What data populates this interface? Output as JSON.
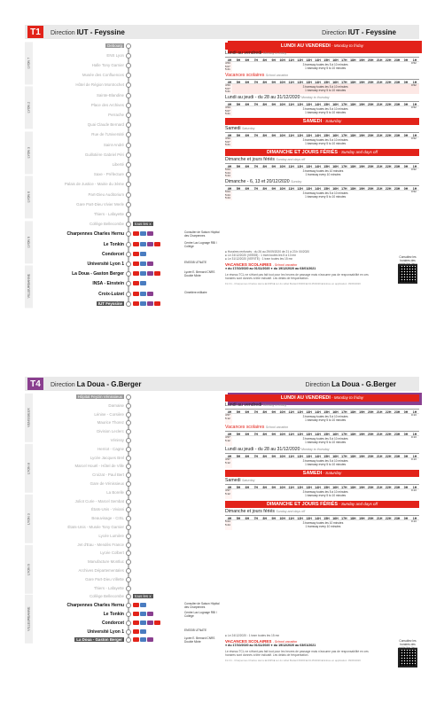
{
  "sheet1": {
    "line_badge": "T1",
    "direction_prefix": "Direction",
    "direction": "IUT - Feyssine",
    "zones": [
      "LYON 7",
      "LYON 2",
      "LYON 3",
      "LYON 6",
      "LYON 9",
      "VILLEURBANNE"
    ],
    "stops": [
      {
        "name": "Debourg",
        "style": "first"
      },
      {
        "name": "ENS Lyon",
        "style": ""
      },
      {
        "name": "Halle Tony Garnier",
        "style": ""
      },
      {
        "name": "Musée des Confluences",
        "style": ""
      },
      {
        "name": "Hôtel de Région Montrochet",
        "style": ""
      },
      {
        "name": "Sainte-Blandine",
        "style": ""
      },
      {
        "name": "Place des Archives",
        "style": ""
      },
      {
        "name": "Perrache",
        "style": ""
      },
      {
        "name": "Quai Claude Bernard",
        "style": ""
      },
      {
        "name": "Rue de l'Université",
        "style": ""
      },
      {
        "name": "Saint-André",
        "style": ""
      },
      {
        "name": "Guillotière Gabriel Péri",
        "style": ""
      },
      {
        "name": "Liberté",
        "style": ""
      },
      {
        "name": "Saxe - Préfecture",
        "style": ""
      },
      {
        "name": "Palais de Justice - Mairie du 3ème",
        "style": ""
      },
      {
        "name": "Part-Dieu Auditorium",
        "style": ""
      },
      {
        "name": "Gare Part-Dieu Vivier Merle",
        "style": ""
      },
      {
        "name": "Thiers - Lafayette",
        "style": ""
      },
      {
        "name": "Collège Bellecombe",
        "style": ""
      },
      {
        "name": "Charpennes Charles Hernu",
        "style": "bold"
      },
      {
        "name": "Le Tonkin",
        "style": "bold"
      },
      {
        "name": "Condorcet",
        "style": "bold"
      },
      {
        "name": "Université Lyon 1",
        "style": "bold"
      },
      {
        "name": "La Doua - Gaston Berger",
        "style": "bold"
      },
      {
        "name": "INSA - Einstein",
        "style": "bold"
      },
      {
        "name": "Croix-Luizet",
        "style": "bold"
      },
      {
        "name": "IUT Feyssine",
        "style": "term"
      }
    ],
    "conn_info": [
      {
        "row": 19,
        "text": "Consulter de Saison Hôpital des Charpennes"
      },
      {
        "row": 20,
        "text": "Centre Lac Lugnage RBI / Collège"
      },
      {
        "row": 22,
        "text": "ENSSIB UTNATE"
      },
      {
        "row": 23,
        "text": "Lycée E. Bernard CNRS Double Mixte"
      },
      {
        "row": 25,
        "text": "Cimetière militaire"
      }
    ],
    "tous_les": "tous les x",
    "sections": [
      {
        "type": "banner",
        "title": "LUNDI AU VENDREDI",
        "subtitle": "Monday to friday"
      },
      {
        "type": "period",
        "title": "Lundi au vendredi",
        "note": "Monday to friday",
        "school": false,
        "freq": [
          "3 tramway toutes les 5 à 10 minutes",
          "1 tramway every 5 to 10 minutes"
        ],
        "first": [
          "4:53",
          "5:07",
          "5:21"
        ],
        "last": "0:52",
        "pink": false
      },
      {
        "type": "period",
        "title": "Vacances scolaires",
        "note": "School vacation",
        "school": true,
        "freq": [
          "3 tramway toutes les 5 à 10 minutes",
          "1 tramway every 5 to 10 minutes"
        ],
        "first": [
          "4:53",
          "5:07",
          "5:21"
        ],
        "last": "0:52",
        "pink": true
      },
      {
        "type": "period",
        "title": "Lundi au jeudi - du 28 au 31/12/2020",
        "note": "Monday to thursday",
        "school": false,
        "freq": [
          "3 tramway toutes les 5 à 10 minutes",
          "1 tramway every 5 to 10 minutes"
        ],
        "first": [
          "4:53",
          "5:07",
          "5:21"
        ],
        "last": "0:52",
        "pink": false
      },
      {
        "type": "banner",
        "title": "SAMEDI",
        "subtitle": "Saturday"
      },
      {
        "type": "period",
        "title": "Samedi",
        "note": "Saturday",
        "school": false,
        "freq": [
          "3 tramway toutes les 5 à 10 minutes",
          "1 tramway every 5 to 10 minutes"
        ],
        "first": [
          "4:53",
          "5:07",
          "5:21"
        ],
        "last": "0:52",
        "pink": false
      },
      {
        "type": "banner",
        "title": "DIMANCHE ET JOURS FÉRIÉS",
        "subtitle": "Sunday and days off"
      },
      {
        "type": "period",
        "title": "Dimanche et jours fériés",
        "note": "Sunday and days off",
        "school": false,
        "freq": [
          "3 tramway toutes les 10 minutes",
          "1 tramway every 10 minutes"
        ],
        "first": [
          "5:04",
          "5:24",
          "5:44"
        ],
        "last": "0:52",
        "pink": false
      },
      {
        "type": "period",
        "title": "Dimanche - 6, 13 et 20/12/2020",
        "note": "Sunday",
        "school": false,
        "freq": [
          "3 tramway toutes les 5 à 10 minutes",
          "1 tramway every 5 to 10 minutes"
        ],
        "first": [
          "5:04",
          "5:24",
          "5:44"
        ],
        "last": "0:52",
        "pink": false
      }
    ],
    "hours": [
      "4H",
      "5H",
      "6H",
      "7H",
      "8H",
      "9H",
      "10H",
      "11H",
      "12H",
      "13H",
      "14H",
      "15H",
      "16H",
      "17H",
      "18H",
      "19H",
      "20H",
      "21H",
      "22H",
      "23H",
      "0H",
      "1H"
    ],
    "notes": [
      "● Horaires renforcés : du 26 au 29/09/2020 de 21 à 23 h 00/2020",
      "● Le 24/12/2020 (VEB93) : 1 tram toutes les 5 à 10 mn",
      "● Le 31/12/2020 (VERITE) : 1 tram toutes les 15 mn"
    ],
    "vacances_title": "VACANCES SCOLAIRES",
    "vacances_sub": "School vacation",
    "vacances_1": "du 17/10/2020 au 01/11/2020",
    "vacances_2": "du 19/12/2020 au 03/01/2021",
    "disclaimer": "Le réseau TCL ne s'étant pas fait tout pour les heures de passage mais n'assume pas de responsabilité en ces horaires sont donnés à titre indicatif. Les délais de fréquentation.",
    "qr_label": "Consultez les horaires des arrêts/des lieux",
    "legal": "Fin 01 - Charpennes Charles Hernu ■ 2035 ■ sur du Hôtel Bodard 69000 ■ 04-05/2020 ■ Entrée en application: 09/09/2020"
  },
  "sheet2": {
    "line_badge": "T4",
    "direction_prefix": "Direction",
    "direction": "La Doua - G.Berger",
    "zones": [
      "VENISSIEUX",
      "LYON 8",
      "LYON 3",
      "LYON 6",
      "VILLEURBANNE"
    ],
    "stops": [
      {
        "name": "Hôpital Feyzin Vénissieux",
        "style": "first"
      },
      {
        "name": "Darnaise",
        "style": ""
      },
      {
        "name": "Lénine - Corsière",
        "style": ""
      },
      {
        "name": "Maurice Thorez",
        "style": ""
      },
      {
        "name": "Division Leclerc",
        "style": ""
      },
      {
        "name": "Vénissy",
        "style": ""
      },
      {
        "name": "Herriot - Cagne",
        "style": ""
      },
      {
        "name": "Lycée Jacques Brel",
        "style": ""
      },
      {
        "name": "Marcel Houël - Hôtel de Ville",
        "style": ""
      },
      {
        "name": "Croizat - Paul Bert",
        "style": ""
      },
      {
        "name": "Gare de Vénissieux",
        "style": ""
      },
      {
        "name": "La Borelle",
        "style": ""
      },
      {
        "name": "Joliot Curie - Marcel Sembat",
        "style": ""
      },
      {
        "name": "États-Unis - Viviani",
        "style": ""
      },
      {
        "name": "Beauvisage - CISL",
        "style": ""
      },
      {
        "name": "États-Unis - Musée Tony Garnier",
        "style": ""
      },
      {
        "name": "Lycée Lumière",
        "style": ""
      },
      {
        "name": "Jet d'Eau - Mendès France",
        "style": ""
      },
      {
        "name": "Lycée Colbert",
        "style": ""
      },
      {
        "name": "Manufacture Montluc",
        "style": ""
      },
      {
        "name": "Archives Départementales",
        "style": ""
      },
      {
        "name": "Gare Part-Dieu Villette",
        "style": ""
      },
      {
        "name": "Thiers - Lafayette",
        "style": ""
      },
      {
        "name": "Collège Bellecombe",
        "style": ""
      },
      {
        "name": "Charpennes Charles Hernu",
        "style": "bold"
      },
      {
        "name": "Le Tonkin",
        "style": "bold"
      },
      {
        "name": "Condorcet",
        "style": "bold"
      },
      {
        "name": "Université Lyon 1",
        "style": "bold"
      },
      {
        "name": "La Doua - Gaston Berger",
        "style": "term"
      }
    ],
    "conn_info": [
      {
        "row": 24,
        "text": "Consulter de Saison Hôpital des Charpennes"
      },
      {
        "row": 25,
        "text": "Centre Lac Lugnage RBI / Collège"
      },
      {
        "row": 27,
        "text": "ENSSIB UTNATE"
      },
      {
        "row": 28,
        "text": "Lycée E. Bernard CNRS Double Mixte"
      }
    ],
    "tous_les": "tous les x",
    "sections": [
      {
        "type": "banner",
        "title": "LUNDI AU VENDREDI",
        "subtitle": "Monday to friday"
      },
      {
        "type": "period",
        "title": "Lundi au vendredi",
        "note": "Monday to friday",
        "school": false,
        "freq": [
          "3 tramway toutes les 5 à 10 minutes",
          "1 tramway every 5 to 10 minutes"
        ],
        "first": [
          "4:57",
          "5:12"
        ],
        "last": "0:13",
        "pink": false
      },
      {
        "type": "period",
        "title": "Vacances scolaires",
        "note": "School vacation",
        "school": true,
        "freq": [
          "3 tramway toutes les 5 à 10 minutes",
          "1 tramway every 5 to 10 minutes"
        ],
        "first": [
          "4:57",
          "5:12"
        ],
        "last": "0:13",
        "pink": false
      },
      {
        "type": "period",
        "title": "Lundi au jeudi - du 28 au 31/12/2020",
        "note": "Monday to thursday",
        "school": false,
        "freq": [
          "3 tramway toutes les 5 à 10 minutes",
          "1 tramway every 5 to 10 minutes"
        ],
        "first": [
          "4:57",
          "5:12"
        ],
        "last": "0:13",
        "pink": false
      },
      {
        "type": "banner",
        "title": "SAMEDI",
        "subtitle": "Saturday"
      },
      {
        "type": "period",
        "title": "Samedi",
        "note": "Saturday",
        "school": false,
        "freq": [
          "3 tramway toutes les 5 à 10 minutes",
          "1 tramway every 5 to 10 minutes"
        ],
        "first": [
          "4:57",
          "5:12"
        ],
        "last": "0:13",
        "pink": false
      },
      {
        "type": "banner",
        "title": "DIMANCHE ET JOURS FÉRIÉS",
        "subtitle": "Sunday and days off"
      },
      {
        "type": "period",
        "title": "Dimanche et jours fériés",
        "note": "Sunday and days off",
        "school": false,
        "freq": [
          "3 tramway toutes les 10 minutes",
          "1 tramway every 10 minutes"
        ],
        "first": [
          "5:24",
          "5:44"
        ],
        "last": "0:13",
        "pink": false
      }
    ],
    "hours": [
      "4H",
      "5H",
      "6H",
      "7H",
      "8H",
      "9H",
      "10H",
      "11H",
      "12H",
      "13H",
      "14H",
      "15H",
      "16H",
      "17H",
      "18H",
      "19H",
      "20H",
      "21H",
      "22H",
      "23H",
      "0H",
      "1H"
    ],
    "notes": [
      "● Le 24/12/2020 : 1 tram toutes les 15 mn"
    ],
    "vacances_title": "VACANCES SCOLAIRES",
    "vacances_sub": "School vacation",
    "vacances_1": "du 17/10/2020 au 01/11/2020",
    "vacances_2": "du 19/12/2020 au 03/01/2021",
    "disclaimer": "Le réseau TCL ne s'étant pas fait tout pour les heures de passage mais n'assume pas de responsabilité en ces horaires sont donnés à titre indicatif. Les délais de fréquentation.",
    "qr_label": "Consultez les horaires des arrêts/des lieux",
    "legal": "Fin 01 - Charpennes Charles Hernu ■ 2035 ■ sur du Hôtel Bodard 69000 ■ 04-05/2020 ■ Entrée en application: 09/09/2020"
  },
  "colors": {
    "t1": "#e2231a",
    "t4": "#8a3f8f",
    "banner": "#e2231a",
    "zone_bg": "#efefef"
  },
  "conn_colors": [
    "#e2231a",
    "#4a7cc0",
    "#8a3f8f",
    "#e2231a",
    "#e2231a"
  ]
}
